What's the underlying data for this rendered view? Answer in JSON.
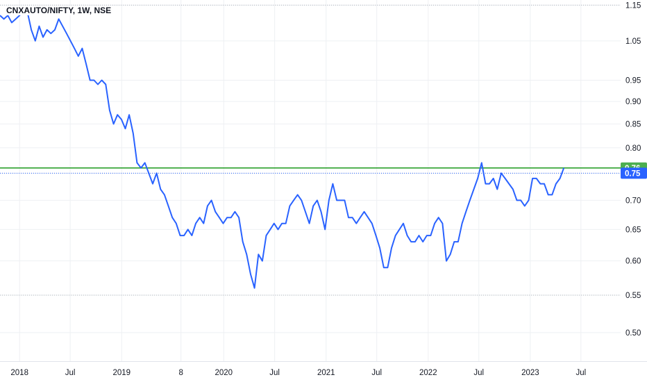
{
  "chart_data": {
    "type": "line",
    "title": "CNXAUTO/NIFTY, 1W, NSE",
    "y_scale": "log",
    "ylim": [
      0.465,
      1.165
    ],
    "xlim": [
      "2017-10-23",
      "2023-11-20"
    ],
    "y_ticks": [
      "1.15",
      "1.05",
      "0.95",
      "0.90",
      "0.85",
      "0.80",
      "0.75",
      "0.70",
      "0.65",
      "0.60",
      "0.55",
      "0.50"
    ],
    "x_ticks": [
      {
        "date": "2018-01-01",
        "label": "2018"
      },
      {
        "date": "2018-07-01",
        "label": "Jul"
      },
      {
        "date": "2019-01-01",
        "label": "2019"
      },
      {
        "date": "2019-08-01",
        "label": "8"
      },
      {
        "date": "2020-01-01",
        "label": "2020"
      },
      {
        "date": "2020-07-01",
        "label": "Jul"
      },
      {
        "date": "2021-01-01",
        "label": "2021"
      },
      {
        "date": "2021-07-01",
        "label": "Jul"
      },
      {
        "date": "2022-01-01",
        "label": "2022"
      },
      {
        "date": "2022-07-01",
        "label": "Jul"
      },
      {
        "date": "2023-01-01",
        "label": "2023"
      },
      {
        "date": "2023-07-01",
        "label": "Jul"
      }
    ],
    "horizontal_lines": [
      {
        "value": 1.15,
        "style": "dotted",
        "color": "#b2b5be"
      },
      {
        "value": 0.55,
        "style": "dotted",
        "color": "#b2b5be"
      },
      {
        "value": 0.76,
        "style": "solid",
        "color": "#2ca02c",
        "label": "0.76",
        "label_color": "#4caf50"
      }
    ],
    "last_price": {
      "value": 0.75,
      "label": "0.75",
      "color": "#2962ff"
    },
    "series": [
      {
        "color": "#2962ff",
        "points": [
          [
            "2017-10-23",
            1.12
          ],
          [
            "2017-11-06",
            1.11
          ],
          [
            "2017-11-20",
            1.12
          ],
          [
            "2017-12-04",
            1.1
          ],
          [
            "2017-12-18",
            1.11
          ],
          [
            "2018-01-01",
            1.12
          ],
          [
            "2018-01-15",
            1.14
          ],
          [
            "2018-01-29",
            1.13
          ],
          [
            "2018-02-12",
            1.08
          ],
          [
            "2018-02-26",
            1.05
          ],
          [
            "2018-03-12",
            1.09
          ],
          [
            "2018-03-26",
            1.06
          ],
          [
            "2018-04-09",
            1.08
          ],
          [
            "2018-04-23",
            1.07
          ],
          [
            "2018-05-07",
            1.08
          ],
          [
            "2018-05-21",
            1.11
          ],
          [
            "2018-06-04",
            1.09
          ],
          [
            "2018-06-18",
            1.07
          ],
          [
            "2018-07-02",
            1.05
          ],
          [
            "2018-07-16",
            1.03
          ],
          [
            "2018-07-30",
            1.01
          ],
          [
            "2018-08-13",
            1.03
          ],
          [
            "2018-08-27",
            0.99
          ],
          [
            "2018-09-10",
            0.95
          ],
          [
            "2018-09-24",
            0.95
          ],
          [
            "2018-10-08",
            0.94
          ],
          [
            "2018-10-22",
            0.95
          ],
          [
            "2018-11-05",
            0.94
          ],
          [
            "2018-11-19",
            0.88
          ],
          [
            "2018-12-03",
            0.85
          ],
          [
            "2018-12-17",
            0.87
          ],
          [
            "2018-12-31",
            0.86
          ],
          [
            "2019-01-14",
            0.84
          ],
          [
            "2019-01-28",
            0.87
          ],
          [
            "2019-02-11",
            0.83
          ],
          [
            "2019-02-25",
            0.77
          ],
          [
            "2019-03-11",
            0.76
          ],
          [
            "2019-03-25",
            0.77
          ],
          [
            "2019-04-08",
            0.75
          ],
          [
            "2019-04-22",
            0.73
          ],
          [
            "2019-05-06",
            0.75
          ],
          [
            "2019-05-20",
            0.72
          ],
          [
            "2019-06-03",
            0.71
          ],
          [
            "2019-06-17",
            0.69
          ],
          [
            "2019-07-01",
            0.67
          ],
          [
            "2019-07-15",
            0.66
          ],
          [
            "2019-07-29",
            0.64
          ],
          [
            "2019-08-12",
            0.64
          ],
          [
            "2019-08-26",
            0.65
          ],
          [
            "2019-09-09",
            0.64
          ],
          [
            "2019-09-23",
            0.66
          ],
          [
            "2019-10-07",
            0.67
          ],
          [
            "2019-10-21",
            0.66
          ],
          [
            "2019-11-04",
            0.69
          ],
          [
            "2019-11-18",
            0.7
          ],
          [
            "2019-12-02",
            0.68
          ],
          [
            "2019-12-16",
            0.67
          ],
          [
            "2019-12-30",
            0.66
          ],
          [
            "2020-01-13",
            0.67
          ],
          [
            "2020-01-27",
            0.67
          ],
          [
            "2020-02-10",
            0.68
          ],
          [
            "2020-02-24",
            0.67
          ],
          [
            "2020-03-09",
            0.63
          ],
          [
            "2020-03-23",
            0.61
          ],
          [
            "2020-04-06",
            0.58
          ],
          [
            "2020-04-20",
            0.56
          ],
          [
            "2020-05-04",
            0.61
          ],
          [
            "2020-05-18",
            0.6
          ],
          [
            "2020-06-01",
            0.64
          ],
          [
            "2020-06-15",
            0.65
          ],
          [
            "2020-06-29",
            0.66
          ],
          [
            "2020-07-13",
            0.65
          ],
          [
            "2020-07-27",
            0.66
          ],
          [
            "2020-08-10",
            0.66
          ],
          [
            "2020-08-24",
            0.69
          ],
          [
            "2020-09-07",
            0.7
          ],
          [
            "2020-09-21",
            0.71
          ],
          [
            "2020-10-05",
            0.7
          ],
          [
            "2020-10-19",
            0.68
          ],
          [
            "2020-11-02",
            0.66
          ],
          [
            "2020-11-16",
            0.69
          ],
          [
            "2020-11-30",
            0.7
          ],
          [
            "2020-12-14",
            0.68
          ],
          [
            "2020-12-28",
            0.65
          ],
          [
            "2021-01-11",
            0.7
          ],
          [
            "2021-01-25",
            0.73
          ],
          [
            "2021-02-08",
            0.7
          ],
          [
            "2021-02-22",
            0.7
          ],
          [
            "2021-03-08",
            0.7
          ],
          [
            "2021-03-22",
            0.67
          ],
          [
            "2021-04-05",
            0.67
          ],
          [
            "2021-04-19",
            0.66
          ],
          [
            "2021-05-03",
            0.67
          ],
          [
            "2021-05-17",
            0.68
          ],
          [
            "2021-05-31",
            0.67
          ],
          [
            "2021-06-14",
            0.66
          ],
          [
            "2021-06-28",
            0.64
          ],
          [
            "2021-07-12",
            0.62
          ],
          [
            "2021-07-26",
            0.59
          ],
          [
            "2021-08-09",
            0.59
          ],
          [
            "2021-08-23",
            0.62
          ],
          [
            "2021-09-06",
            0.64
          ],
          [
            "2021-09-20",
            0.65
          ],
          [
            "2021-10-04",
            0.66
          ],
          [
            "2021-10-18",
            0.64
          ],
          [
            "2021-11-01",
            0.63
          ],
          [
            "2021-11-15",
            0.63
          ],
          [
            "2021-11-29",
            0.64
          ],
          [
            "2021-12-13",
            0.63
          ],
          [
            "2021-12-27",
            0.64
          ],
          [
            "2022-01-10",
            0.64
          ],
          [
            "2022-01-24",
            0.66
          ],
          [
            "2022-02-07",
            0.67
          ],
          [
            "2022-02-21",
            0.66
          ],
          [
            "2022-03-07",
            0.6
          ],
          [
            "2022-03-21",
            0.61
          ],
          [
            "2022-04-04",
            0.63
          ],
          [
            "2022-04-18",
            0.63
          ],
          [
            "2022-05-02",
            0.66
          ],
          [
            "2022-05-16",
            0.68
          ],
          [
            "2022-05-30",
            0.7
          ],
          [
            "2022-06-13",
            0.72
          ],
          [
            "2022-06-27",
            0.74
          ],
          [
            "2022-07-11",
            0.77
          ],
          [
            "2022-07-25",
            0.73
          ],
          [
            "2022-08-08",
            0.73
          ],
          [
            "2022-08-22",
            0.74
          ],
          [
            "2022-09-05",
            0.72
          ],
          [
            "2022-09-19",
            0.75
          ],
          [
            "2022-10-03",
            0.74
          ],
          [
            "2022-10-17",
            0.73
          ],
          [
            "2022-10-31",
            0.72
          ],
          [
            "2022-11-14",
            0.7
          ],
          [
            "2022-11-28",
            0.7
          ],
          [
            "2022-12-12",
            0.69
          ],
          [
            "2022-12-26",
            0.7
          ],
          [
            "2023-01-09",
            0.74
          ],
          [
            "2023-01-23",
            0.74
          ],
          [
            "2023-02-06",
            0.73
          ],
          [
            "2023-02-20",
            0.73
          ],
          [
            "2023-03-06",
            0.71
          ],
          [
            "2023-03-20",
            0.71
          ],
          [
            "2023-04-03",
            0.73
          ],
          [
            "2023-04-17",
            0.74
          ],
          [
            "2023-05-01",
            0.76
          ]
        ]
      }
    ]
  }
}
